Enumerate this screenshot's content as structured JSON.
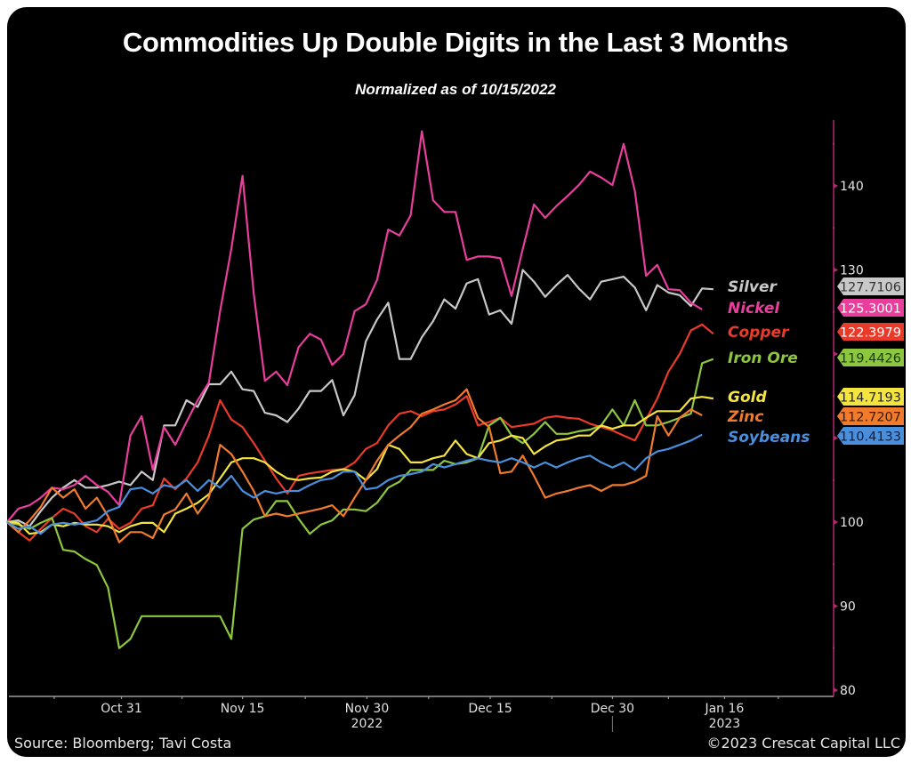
{
  "chart_data": {
    "type": "line",
    "title": "Commodities Up Double Digits in the Last 3 Months",
    "subtitle": "Normalized as of 10/15/2022",
    "xlabel": "",
    "ylabel": "",
    "ylim": [
      80,
      146
    ],
    "yticks": [
      80,
      90,
      100,
      110,
      120,
      130,
      140
    ],
    "ytick_labels": [
      "80",
      "90",
      "100",
      "",
      "",
      "130",
      "140"
    ],
    "x_ticks": [
      {
        "index": 10.2,
        "label": "Oct 31"
      },
      {
        "index": 21.0,
        "label": "Nov 15"
      },
      {
        "index": 32.1,
        "label": "Nov 30"
      },
      {
        "index": 43.1,
        "label": "Dec 15"
      },
      {
        "index": 54.0,
        "label": "Dec 30"
      },
      {
        "index": 64.0,
        "label": "Jan 16"
      }
    ],
    "year_labels": [
      {
        "index": 32.1,
        "label": "2022"
      },
      {
        "index": 64.0,
        "label": "2023"
      }
    ],
    "x_range": [
      0,
      69.5
    ],
    "grid": false,
    "legend_position": "right",
    "series": [
      {
        "name": "Silver",
        "color": "#c8c8c8",
        "label_text_color": "#333333",
        "last_value": "127.7106",
        "values": [
          100,
          100.2,
          99.5,
          101.3,
          102.9,
          104.1,
          105,
          104.1,
          104.1,
          104.4,
          104.8,
          104.4,
          106,
          105,
          111.5,
          111.5,
          114.5,
          113.7,
          116.4,
          116.4,
          117.9,
          115.8,
          115.6,
          113,
          112.7,
          111.9,
          113.5,
          115.6,
          115.6,
          116.9,
          112.7,
          115.1,
          121.5,
          124.1,
          126.1,
          119.4,
          119.4,
          122,
          123.9,
          126.5,
          125.4,
          128.4,
          128.9,
          124.7,
          125.2,
          123.6,
          130,
          128.6,
          126.8,
          128.2,
          129.4,
          127.8,
          126.5,
          128.6,
          128.9,
          129.2,
          127.9,
          125.2,
          128.2,
          127.3,
          127,
          125.7,
          127.8,
          127.7
        ]
      },
      {
        "name": "Nickel",
        "color": "#e83e9c",
        "label_text_color": "#ffffff",
        "last_value": "125.3001",
        "values": [
          100,
          101.6,
          102,
          102.9,
          104.1,
          103.9,
          104.4,
          105.5,
          104.4,
          103.6,
          102,
          110.3,
          112.6,
          106.2,
          111.3,
          109.2,
          111.9,
          114.5,
          116.6,
          125.1,
          132.5,
          141.2,
          127.2,
          116.8,
          117.9,
          116.3,
          120.8,
          122.4,
          121.7,
          118.7,
          120,
          125.1,
          125.9,
          128.8,
          134.8,
          134.1,
          136.5,
          146.5,
          138.3,
          136.9,
          136.9,
          131.2,
          131.6,
          131.6,
          131.4,
          126.9,
          132.5,
          137.8,
          136.2,
          137.6,
          138.8,
          140.1,
          141.7,
          141,
          140.1,
          145,
          139.4,
          129.3,
          130.6,
          127.7,
          127.6,
          126.1,
          125.3
        ]
      },
      {
        "name": "Copper",
        "color": "#ea3b2a",
        "label_text_color": "#ffffff",
        "last_value": "122.3979",
        "values": [
          100,
          98.8,
          97.8,
          99.2,
          100.5,
          101.6,
          101,
          99.5,
          98.8,
          100.4,
          99.2,
          99.9,
          101.6,
          102,
          105.2,
          103.9,
          105.2,
          107.1,
          110.3,
          114.5,
          112.2,
          111.3,
          109.4,
          107.3,
          105.2,
          103.4,
          105.5,
          105.8,
          106,
          106.2,
          106.3,
          107.1,
          108.7,
          109.4,
          111.5,
          112.9,
          113.2,
          112.6,
          113.2,
          113.4,
          114,
          115,
          111.5,
          111.9,
          112.4,
          111.3,
          111.5,
          111.7,
          112.4,
          112.6,
          112.4,
          112.3,
          111.7,
          111.3,
          110.9,
          110.3,
          109.7,
          112.2,
          114.7,
          117.9,
          120,
          122.8,
          123.5,
          122.4
        ]
      },
      {
        "name": "Iron Ore",
        "color": "#8dc63f",
        "label_text_color": "#1a3a0a",
        "last_value": "119.4426",
        "values": [
          100,
          99.7,
          99.2,
          99.9,
          100.5,
          96.7,
          96.5,
          95.6,
          94.9,
          92.2,
          85,
          86.1,
          88.8,
          88.8,
          88.8,
          88.8,
          88.8,
          88.8,
          88.8,
          88.8,
          86.1,
          99.2,
          100.3,
          100.7,
          102.5,
          102.5,
          100.4,
          98.6,
          99.7,
          100.2,
          101.5,
          101.5,
          101.3,
          102.3,
          104.1,
          104.8,
          106.2,
          106.2,
          106.2,
          107.3,
          106.9,
          107.1,
          107.6,
          111.5,
          112.4,
          110.3,
          109.4,
          110.5,
          111.9,
          110.5,
          110.5,
          110.8,
          111,
          111.5,
          113.4,
          111.5,
          114.5,
          111.5,
          111.5,
          111.9,
          112.4,
          112.9,
          118.9,
          119.4
        ]
      },
      {
        "name": "Gold",
        "color": "#f3e43f",
        "label_text_color": "#222222",
        "last_value": "114.7193",
        "values": [
          100,
          99.9,
          98.6,
          98.8,
          99.7,
          99.5,
          99.9,
          99.7,
          99.7,
          99.5,
          98.8,
          99.5,
          99.9,
          99.9,
          98.8,
          101,
          101.6,
          102.3,
          103.3,
          105.2,
          107.1,
          107.6,
          107.6,
          107.1,
          106,
          105.2,
          105,
          105.2,
          105.3,
          106,
          106.3,
          106,
          105,
          106.3,
          109.2,
          108.7,
          107.1,
          107.1,
          107.6,
          107.9,
          109.7,
          108.1,
          107.6,
          109.4,
          109.7,
          110.3,
          110,
          108.1,
          109,
          109.7,
          109.9,
          110.3,
          110.3,
          111.5,
          111.1,
          111.5,
          111.5,
          112.4,
          113.2,
          113.2,
          113.2,
          114.7,
          114.9,
          114.7
        ]
      },
      {
        "name": "Zinc",
        "color": "#f07b2c",
        "label_text_color": "#3a1a05",
        "last_value": "112.7207",
        "values": [
          100,
          98.8,
          100.2,
          101.8,
          104.1,
          102.9,
          103.9,
          101.6,
          102.9,
          100.7,
          97.6,
          98.8,
          98.8,
          98.1,
          100.9,
          101.5,
          103.4,
          101,
          102.9,
          109.2,
          108.1,
          106,
          103.7,
          100.7,
          101,
          100.7,
          101,
          101.3,
          101.6,
          102,
          100.7,
          102.9,
          105,
          107.3,
          109.2,
          110.3,
          111.3,
          112.9,
          113.4,
          114,
          114.5,
          115.8,
          112.4,
          111.3,
          105.8,
          106,
          107.9,
          105.5,
          102.9,
          103.4,
          103.7,
          104.1,
          104.4,
          103.7,
          104.4,
          104.4,
          104.8,
          105.5,
          112.6,
          110.3,
          112.4,
          113.4,
          112.7
        ]
      },
      {
        "name": "Soybeans",
        "color": "#4a8fdc",
        "label_text_color": "#0b1f40",
        "last_value": "110.4133",
        "values": [
          100,
          99.2,
          99.5,
          98.6,
          99.7,
          99.9,
          99.7,
          99.9,
          100.2,
          101.3,
          101.8,
          103.9,
          104.1,
          103.4,
          104.4,
          104.1,
          105,
          103.7,
          105,
          104.1,
          105.5,
          103.7,
          102.9,
          103.7,
          103.4,
          103.7,
          103.7,
          104.4,
          105,
          105.2,
          106,
          106,
          103.9,
          104.1,
          105,
          105.5,
          105.7,
          106,
          106.9,
          106.5,
          106.9,
          107.3,
          107.6,
          107.3,
          107.1,
          107.6,
          107.1,
          106.5,
          107.1,
          106.5,
          107.1,
          107.6,
          107.9,
          107.1,
          106.5,
          107.1,
          106.2,
          107.6,
          108.4,
          108.7,
          109.2,
          109.7,
          110.4
        ]
      }
    ],
    "axis_color": "#b0296e"
  },
  "footer": {
    "source": "Source: Bloomberg; Tavi Costa",
    "copyright": "©2023 Crescat Capital LLC"
  }
}
